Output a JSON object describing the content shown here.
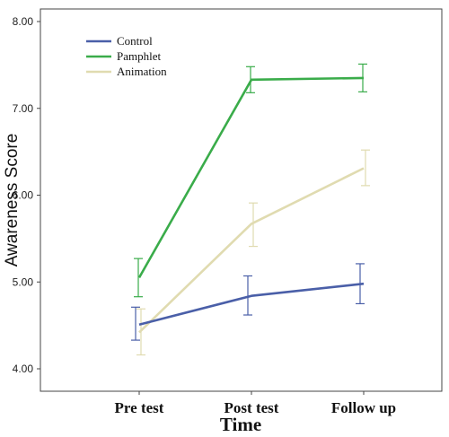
{
  "chart_data": {
    "type": "line",
    "categories": [
      "Pre test",
      "Post test",
      "Follow up"
    ],
    "xlabel": "Time",
    "ylabel": "Awareness Score",
    "ylim": [
      4.0,
      8.0
    ],
    "yticks": [
      "4.00",
      "5.00",
      "6.00",
      "7.00",
      "8.00"
    ],
    "grid": false,
    "legend_position": "top-left",
    "series": [
      {
        "name": "Control",
        "color": "#4a5fa8",
        "values": [
          4.51,
          4.84,
          4.98
        ],
        "error_low": [
          4.33,
          4.62,
          4.75
        ],
        "error_high": [
          4.71,
          5.07,
          5.21
        ]
      },
      {
        "name": "Pamphlet",
        "color": "#3aac4a",
        "values": [
          5.05,
          7.33,
          7.35
        ],
        "error_low": [
          4.83,
          7.18,
          7.19
        ],
        "error_high": [
          5.27,
          7.48,
          7.51
        ]
      },
      {
        "name": "Animation",
        "color": "#e0dbb0",
        "values": [
          4.42,
          5.67,
          6.31
        ],
        "error_low": [
          4.16,
          5.41,
          6.11
        ],
        "error_high": [
          4.69,
          5.91,
          6.52
        ]
      }
    ]
  }
}
